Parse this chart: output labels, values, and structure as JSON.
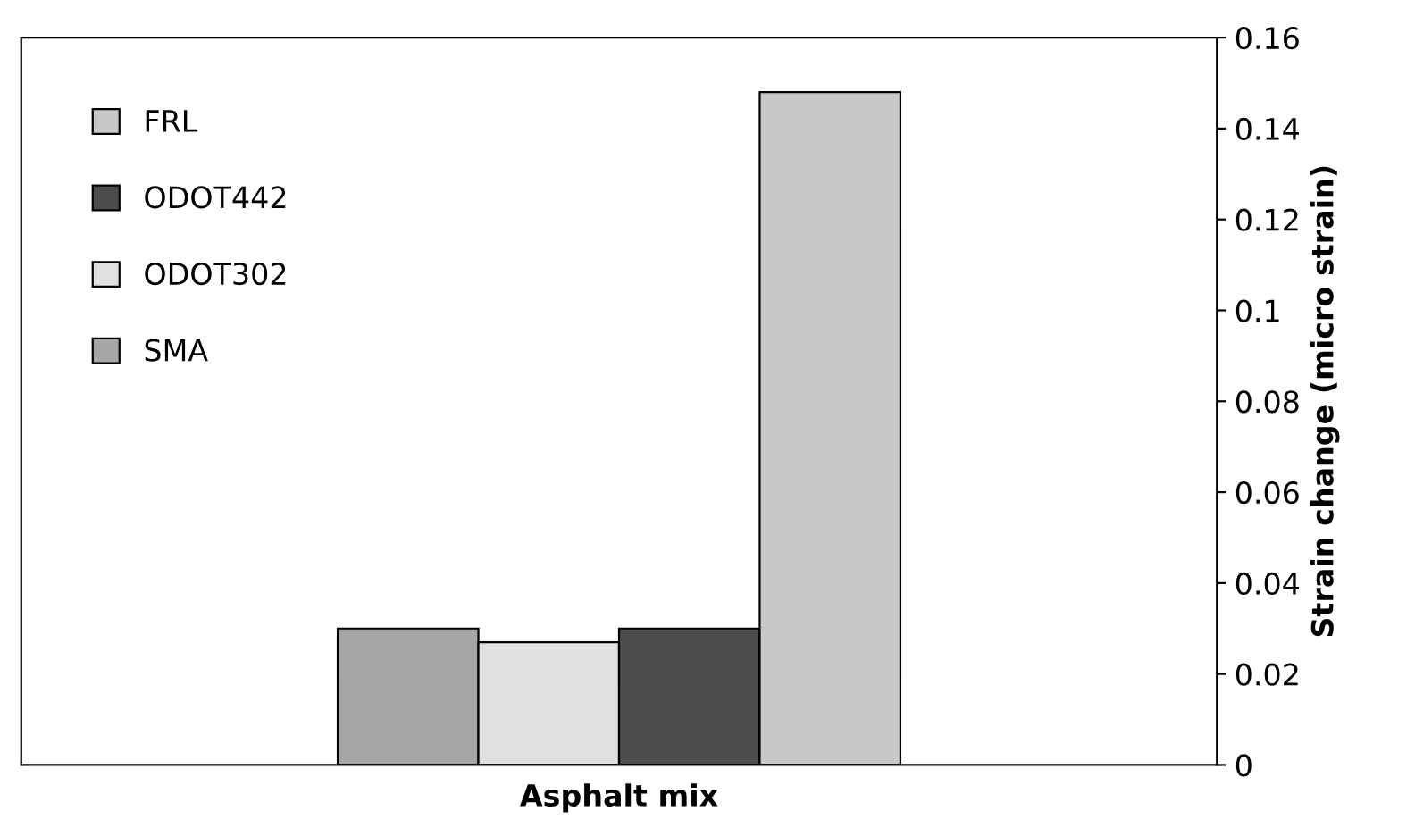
{
  "chart_data": {
    "type": "bar",
    "xlabel": "Asphalt mix",
    "ylabel": "Strain change (micro strain)",
    "categories": [
      null
    ],
    "series": [
      {
        "name": "SMA",
        "color": "#a6a6a6",
        "values": [
          0.03
        ]
      },
      {
        "name": "ODOT302",
        "color": "#e0e0e0",
        "values": [
          0.027
        ]
      },
      {
        "name": "ODOT442",
        "color": "#4d4d4d",
        "values": [
          0.03
        ]
      },
      {
        "name": "FRL",
        "color": "#c8c8c8",
        "values": [
          0.148
        ]
      }
    ],
    "ylim": [
      0,
      0.16
    ],
    "yticks": [
      0,
      0.02,
      0.04,
      0.06,
      0.08,
      0.1,
      0.12,
      0.14,
      0.16
    ],
    "grid": false,
    "legend": "top left"
  }
}
